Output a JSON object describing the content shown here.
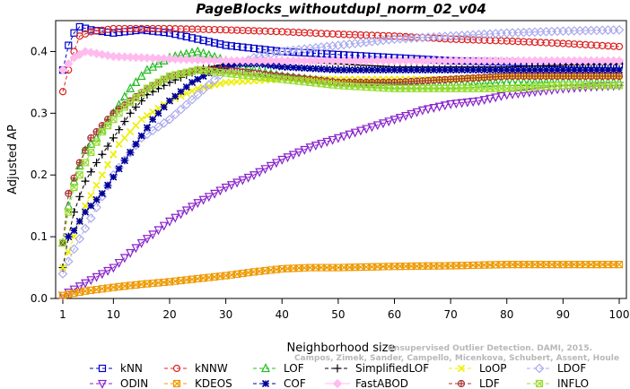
{
  "chart_data": {
    "type": "line",
    "title": "PageBlocks_withoutdupl_norm_02_v04",
    "xlabel": "Neighborhood size",
    "ylabel": "Adjusted AP",
    "xlim": [
      1,
      100
    ],
    "ylim": [
      0,
      0.45
    ],
    "xticks": [
      "1",
      "10",
      "20",
      "30",
      "40",
      "50",
      "60",
      "70",
      "80",
      "90",
      "100"
    ],
    "yticks": [
      "0.0",
      "0.1",
      "0.2",
      "0.3",
      "0.4"
    ],
    "grid": false,
    "legend_position": "bottom",
    "watermark": [
      "Unsupervised Outlier Detection. DAMI, 2015.",
      "Campos, Zimek, Sander, Campello, Micenkova, Schubert, Assent, Houle"
    ],
    "series": [
      {
        "name": "kNN",
        "color": "#0000cc",
        "marker": "square",
        "dash": "4,3",
        "points": [
          [
            1,
            0.37
          ],
          [
            2,
            0.41
          ],
          [
            3,
            0.43
          ],
          [
            4,
            0.44
          ],
          [
            6,
            0.435
          ],
          [
            10,
            0.43
          ],
          [
            15,
            0.435
          ],
          [
            20,
            0.43
          ],
          [
            25,
            0.42
          ],
          [
            30,
            0.41
          ],
          [
            40,
            0.4
          ],
          [
            50,
            0.395
          ],
          [
            60,
            0.39
          ],
          [
            70,
            0.385
          ],
          [
            80,
            0.383
          ],
          [
            90,
            0.38
          ],
          [
            100,
            0.378
          ]
        ]
      },
      {
        "name": "kNNW",
        "color": "#dd2222",
        "marker": "circle",
        "dash": "4,3",
        "points": [
          [
            1,
            0.335
          ],
          [
            2,
            0.37
          ],
          [
            3,
            0.4
          ],
          [
            4,
            0.425
          ],
          [
            6,
            0.432
          ],
          [
            10,
            0.437
          ],
          [
            20,
            0.437
          ],
          [
            30,
            0.435
          ],
          [
            40,
            0.432
          ],
          [
            50,
            0.428
          ],
          [
            60,
            0.425
          ],
          [
            70,
            0.42
          ],
          [
            80,
            0.417
          ],
          [
            90,
            0.413
          ],
          [
            100,
            0.408
          ]
        ]
      },
      {
        "name": "LOF",
        "color": "#22bb22",
        "marker": "triangle",
        "dash": "4,3",
        "points": [
          [
            1,
            0.09
          ],
          [
            2,
            0.15
          ],
          [
            3,
            0.19
          ],
          [
            5,
            0.24
          ],
          [
            7,
            0.26
          ],
          [
            10,
            0.3
          ],
          [
            13,
            0.34
          ],
          [
            16,
            0.37
          ],
          [
            20,
            0.39
          ],
          [
            25,
            0.4
          ],
          [
            30,
            0.385
          ],
          [
            35,
            0.37
          ],
          [
            40,
            0.36
          ],
          [
            50,
            0.35
          ],
          [
            60,
            0.345
          ],
          [
            70,
            0.345
          ],
          [
            80,
            0.35
          ],
          [
            90,
            0.35
          ],
          [
            100,
            0.35
          ]
        ]
      },
      {
        "name": "SimplifiedLOF",
        "color": "#000000",
        "marker": "plus",
        "dash": "4,3",
        "points": [
          [
            1,
            0.05
          ],
          [
            2,
            0.1
          ],
          [
            3,
            0.14
          ],
          [
            5,
            0.19
          ],
          [
            7,
            0.22
          ],
          [
            10,
            0.26
          ],
          [
            13,
            0.3
          ],
          [
            16,
            0.33
          ],
          [
            20,
            0.35
          ],
          [
            25,
            0.37
          ],
          [
            30,
            0.38
          ],
          [
            35,
            0.385
          ],
          [
            40,
            0.385
          ],
          [
            50,
            0.38
          ],
          [
            60,
            0.375
          ],
          [
            70,
            0.375
          ],
          [
            80,
            0.375
          ],
          [
            90,
            0.378
          ],
          [
            100,
            0.38
          ]
        ]
      },
      {
        "name": "LoOP",
        "color": "#eeee00",
        "marker": "x",
        "dash": "4,3",
        "points": [
          [
            1,
            0.05
          ],
          [
            3,
            0.1
          ],
          [
            5,
            0.15
          ],
          [
            8,
            0.2
          ],
          [
            11,
            0.25
          ],
          [
            15,
            0.29
          ],
          [
            20,
            0.32
          ],
          [
            25,
            0.34
          ],
          [
            30,
            0.35
          ],
          [
            40,
            0.355
          ],
          [
            50,
            0.355
          ],
          [
            60,
            0.355
          ],
          [
            70,
            0.355
          ],
          [
            80,
            0.36
          ],
          [
            90,
            0.36
          ],
          [
            100,
            0.36
          ]
        ]
      },
      {
        "name": "LDOF",
        "color": "#aaaaee",
        "marker": "diamond",
        "dash": "4,3",
        "points": [
          [
            1,
            0.04
          ],
          [
            3,
            0.08
          ],
          [
            6,
            0.13
          ],
          [
            10,
            0.2
          ],
          [
            15,
            0.26
          ],
          [
            20,
            0.29
          ],
          [
            25,
            0.33
          ],
          [
            30,
            0.37
          ],
          [
            35,
            0.39
          ],
          [
            40,
            0.4
          ],
          [
            50,
            0.41
          ],
          [
            60,
            0.42
          ],
          [
            70,
            0.425
          ],
          [
            80,
            0.43
          ],
          [
            90,
            0.433
          ],
          [
            100,
            0.435
          ]
        ]
      },
      {
        "name": "ODIN",
        "color": "#8822cc",
        "marker": "invtriangle",
        "dash": "4,3",
        "points": [
          [
            1,
            0.005
          ],
          [
            5,
            0.025
          ],
          [
            10,
            0.05
          ],
          [
            15,
            0.09
          ],
          [
            20,
            0.125
          ],
          [
            25,
            0.155
          ],
          [
            30,
            0.18
          ],
          [
            35,
            0.2
          ],
          [
            40,
            0.225
          ],
          [
            45,
            0.245
          ],
          [
            50,
            0.26
          ],
          [
            55,
            0.275
          ],
          [
            60,
            0.29
          ],
          [
            65,
            0.305
          ],
          [
            70,
            0.315
          ],
          [
            75,
            0.32
          ],
          [
            80,
            0.33
          ],
          [
            85,
            0.335
          ],
          [
            90,
            0.34
          ],
          [
            95,
            0.343
          ],
          [
            100,
            0.345
          ]
        ]
      },
      {
        "name": "KDEOS",
        "color": "#ee9900",
        "marker": "sqx",
        "dash": "4,3",
        "points": [
          [
            1,
            0.005
          ],
          [
            5,
            0.012
          ],
          [
            10,
            0.018
          ],
          [
            15,
            0.023
          ],
          [
            20,
            0.027
          ],
          [
            25,
            0.032
          ],
          [
            30,
            0.037
          ],
          [
            35,
            0.043
          ],
          [
            40,
            0.048
          ],
          [
            45,
            0.05
          ],
          [
            50,
            0.05
          ],
          [
            55,
            0.051
          ],
          [
            60,
            0.052
          ],
          [
            70,
            0.053
          ],
          [
            80,
            0.055
          ],
          [
            90,
            0.055
          ],
          [
            100,
            0.055
          ]
        ]
      },
      {
        "name": "COF",
        "color": "#000099",
        "marker": "star",
        "dash": "4,3",
        "points": [
          [
            1,
            0.09
          ],
          [
            3,
            0.11
          ],
          [
            5,
            0.14
          ],
          [
            8,
            0.17
          ],
          [
            11,
            0.21
          ],
          [
            14,
            0.25
          ],
          [
            17,
            0.29
          ],
          [
            20,
            0.32
          ],
          [
            24,
            0.35
          ],
          [
            28,
            0.37
          ],
          [
            32,
            0.38
          ],
          [
            36,
            0.38
          ],
          [
            40,
            0.375
          ],
          [
            50,
            0.37
          ],
          [
            60,
            0.37
          ],
          [
            70,
            0.37
          ],
          [
            80,
            0.37
          ],
          [
            90,
            0.37
          ],
          [
            100,
            0.37
          ]
        ]
      },
      {
        "name": "FastABOD",
        "color": "#ffbbee",
        "marker": "diamondfill",
        "dash": "",
        "points": [
          [
            1,
            0.37
          ],
          [
            3,
            0.39
          ],
          [
            5,
            0.4
          ],
          [
            8,
            0.395
          ],
          [
            10,
            0.392
          ],
          [
            15,
            0.39
          ],
          [
            20,
            0.388
          ],
          [
            30,
            0.385
          ],
          [
            40,
            0.385
          ],
          [
            50,
            0.385
          ],
          [
            60,
            0.385
          ],
          [
            70,
            0.385
          ],
          [
            80,
            0.385
          ],
          [
            90,
            0.385
          ],
          [
            100,
            0.385
          ]
        ]
      },
      {
        "name": "LDF",
        "color": "#aa3333",
        "marker": "circleplus",
        "dash": "4,3",
        "points": [
          [
            1,
            0.09
          ],
          [
            2,
            0.17
          ],
          [
            4,
            0.22
          ],
          [
            6,
            0.26
          ],
          [
            8,
            0.28
          ],
          [
            10,
            0.3
          ],
          [
            13,
            0.32
          ],
          [
            16,
            0.34
          ],
          [
            20,
            0.36
          ],
          [
            25,
            0.37
          ],
          [
            30,
            0.37
          ],
          [
            40,
            0.36
          ],
          [
            50,
            0.35
          ],
          [
            60,
            0.35
          ],
          [
            70,
            0.355
          ],
          [
            80,
            0.36
          ],
          [
            90,
            0.36
          ],
          [
            100,
            0.36
          ]
        ]
      },
      {
        "name": "INFLO",
        "color": "#99dd33",
        "marker": "sqx",
        "dash": "4,3",
        "points": [
          [
            1,
            0.09
          ],
          [
            2,
            0.14
          ],
          [
            3,
            0.18
          ],
          [
            5,
            0.22
          ],
          [
            8,
            0.27
          ],
          [
            12,
            0.31
          ],
          [
            16,
            0.34
          ],
          [
            20,
            0.36
          ],
          [
            25,
            0.37
          ],
          [
            30,
            0.365
          ],
          [
            40,
            0.355
          ],
          [
            50,
            0.345
          ],
          [
            60,
            0.34
          ],
          [
            70,
            0.34
          ],
          [
            80,
            0.34
          ],
          [
            90,
            0.345
          ],
          [
            100,
            0.345
          ]
        ]
      }
    ]
  }
}
